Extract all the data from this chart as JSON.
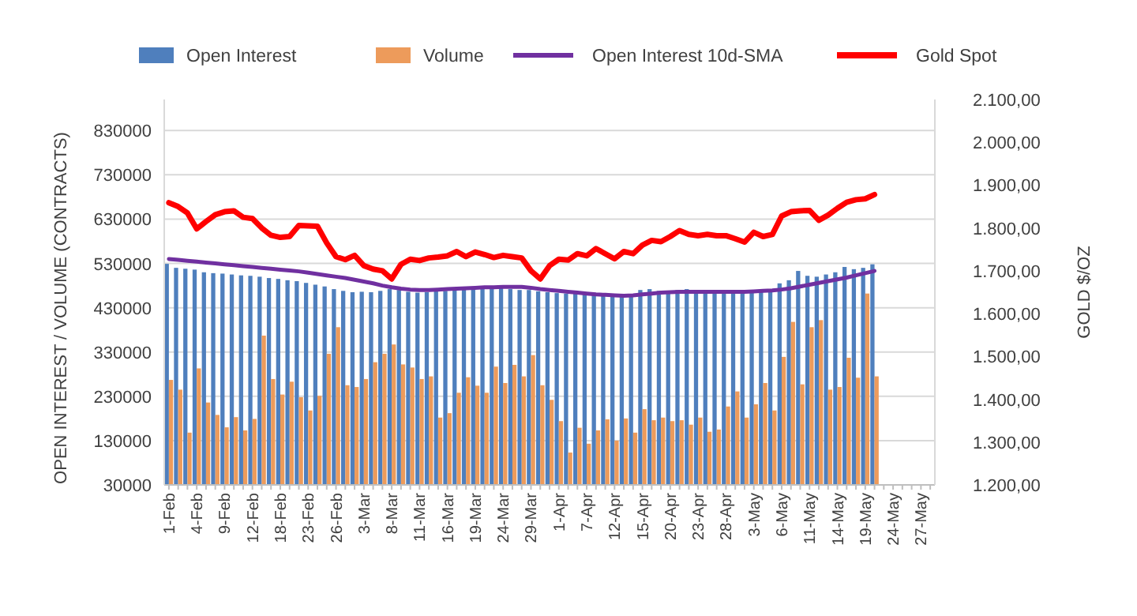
{
  "chart_data": {
    "type": "bar",
    "ylabel": "OPEN INTEREST / VOLUME (CONTRACTS)",
    "y2label": "GOLD $/OZ",
    "categories": [
      "1-Feb",
      null,
      null,
      "4-Feb",
      null,
      null,
      "9-Feb",
      null,
      null,
      "12-Feb",
      null,
      null,
      "18-Feb",
      null,
      null,
      "23-Feb",
      null,
      null,
      "26-Feb",
      null,
      null,
      "3-Mar",
      null,
      null,
      "8-Mar",
      null,
      null,
      "11-Mar",
      null,
      null,
      "16-Mar",
      null,
      null,
      "19-Mar",
      null,
      null,
      "24-Mar",
      null,
      null,
      "29-Mar",
      null,
      null,
      "1-Apr",
      null,
      null,
      "7-Apr",
      null,
      null,
      "12-Apr",
      null,
      null,
      "15-Apr",
      null,
      null,
      "20-Apr",
      null,
      null,
      "23-Apr",
      null,
      null,
      "28-Apr",
      null,
      null,
      "3-May",
      null,
      null,
      "6-May",
      null,
      null,
      "11-May",
      null,
      null,
      "14-May",
      null,
      null,
      "19-May",
      null,
      null,
      "24-May",
      null,
      null,
      "27-May",
      null
    ],
    "series": [
      {
        "name": "Open Interest",
        "color": "#4f7fbd",
        "values": [
          529000,
          520000,
          518000,
          516000,
          510000,
          508000,
          507000,
          505000,
          503000,
          502000,
          500000,
          497000,
          495000,
          492000,
          490000,
          486000,
          482000,
          478000,
          472000,
          468000,
          465000,
          466000,
          465000,
          468000,
          472000,
          470000,
          466000,
          464000,
          465000,
          467000,
          468000,
          470000,
          472000,
          471000,
          473000,
          474000,
          478000,
          472000,
          470000,
          470000,
          467000,
          465000,
          463000,
          462000,
          463000,
          464000,
          462000,
          460000,
          458000,
          457000,
          459000,
          470000,
          472000,
          468000,
          467000,
          470000,
          472000,
          470000,
          468000,
          466000,
          466000,
          467000,
          470000,
          470000,
          470000,
          472000,
          485000,
          492000,
          513000,
          502000,
          500000,
          505000,
          510000,
          522000,
          517000,
          520000,
          528000,
          null,
          null,
          null,
          null,
          null,
          null
        ]
      },
      {
        "name": "Volume",
        "color": "#ed9b5b",
        "values": [
          267000,
          245000,
          148000,
          293000,
          216000,
          188000,
          160000,
          183000,
          153000,
          179000,
          367000,
          269000,
          234000,
          263000,
          228000,
          198000,
          231000,
          326000,
          386000,
          255000,
          251000,
          269000,
          307000,
          326000,
          347000,
          302000,
          295000,
          269000,
          275000,
          182000,
          192000,
          238000,
          273000,
          254000,
          238000,
          297000,
          260000,
          301000,
          275000,
          323000,
          255000,
          222000,
          174000,
          103000,
          159000,
          123000,
          153000,
          178000,
          130000,
          180000,
          148000,
          201000,
          176000,
          182000,
          174000,
          176000,
          166000,
          182000,
          150000,
          155000,
          207000,
          241000,
          182000,
          212000,
          260000,
          198000,
          319000,
          398000,
          257000,
          386000,
          402000,
          245000,
          251000,
          317000,
          272000,
          462000,
          275000,
          null,
          null,
          null,
          null,
          null,
          null
        ]
      },
      {
        "name": "Open Interest 10d-SMA",
        "type": "line",
        "color": "#7030a0",
        "values": [
          540000,
          538000,
          536000,
          534000,
          532000,
          530000,
          528000,
          526000,
          524000,
          522000,
          520000,
          518000,
          516000,
          514000,
          512000,
          509000,
          506000,
          503000,
          500000,
          497000,
          493000,
          489000,
          485000,
          480000,
          476000,
          473000,
          471000,
          470000,
          470000,
          471000,
          472000,
          473000,
          474000,
          475000,
          476000,
          476000,
          477000,
          477000,
          477000,
          475000,
          472000,
          470000,
          468000,
          466000,
          464000,
          462000,
          460000,
          459000,
          458000,
          457000,
          458000,
          460000,
          462000,
          464000,
          465000,
          466000,
          466000,
          466000,
          466000,
          466000,
          466000,
          466000,
          466000,
          467000,
          468000,
          469000,
          471000,
          474000,
          478000,
          482000,
          486000,
          490000,
          494000,
          498000,
          503000,
          508000,
          513000,
          null,
          null,
          null,
          null,
          null,
          null
        ]
      },
      {
        "name": "Gold Spot",
        "type": "line",
        "axis": "y2",
        "color": "#ff0000",
        "values": [
          1859,
          1850,
          1835,
          1798,
          1815,
          1831,
          1838,
          1840,
          1825,
          1822,
          1800,
          1783,
          1778,
          1780,
          1806,
          1805,
          1804,
          1765,
          1733,
          1726,
          1736,
          1712,
          1704,
          1700,
          1681,
          1715,
          1727,
          1724,
          1730,
          1732,
          1735,
          1745,
          1733,
          1744,
          1738,
          1731,
          1736,
          1733,
          1730,
          1700,
          1681,
          1712,
          1727,
          1725,
          1740,
          1735,
          1752,
          1740,
          1728,
          1745,
          1740,
          1760,
          1771,
          1768,
          1780,
          1794,
          1785,
          1782,
          1785,
          1782,
          1782,
          1775,
          1767,
          1790,
          1780,
          1785,
          1828,
          1838,
          1840,
          1841,
          1818,
          1830,
          1846,
          1860,
          1866,
          1868,
          1878,
          null,
          null,
          null,
          null,
          null,
          null
        ]
      }
    ],
    "ylim": [
      30000,
      900000
    ],
    "yticks": [
      30000,
      130000,
      230000,
      330000,
      430000,
      530000,
      630000,
      730000,
      830000
    ],
    "y2lim": [
      1200,
      2100
    ],
    "y2ticks": [
      {
        "value": 1200,
        "label": "1.200,00"
      },
      {
        "value": 1300,
        "label": "1.300,00"
      },
      {
        "value": 1400,
        "label": "1.400,00"
      },
      {
        "value": 1500,
        "label": "1.500,00"
      },
      {
        "value": 1600,
        "label": "1.600,00"
      },
      {
        "value": 1700,
        "label": "1.700,00"
      },
      {
        "value": 1800,
        "label": "1.800,00"
      },
      {
        "value": 1900,
        "label": "1.900,00"
      },
      {
        "value": 2000,
        "label": "2.000,00"
      },
      {
        "value": 2100,
        "label": "2.100,00"
      }
    ],
    "grid": "y",
    "legend": "top",
    "marker": "none"
  }
}
